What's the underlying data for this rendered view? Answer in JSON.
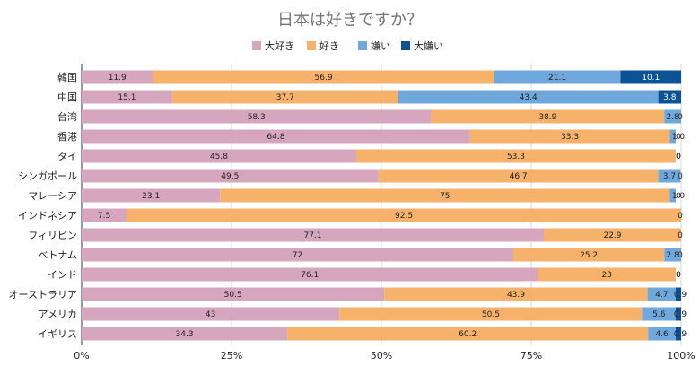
{
  "chart_data": {
    "type": "bar",
    "orientation": "horizontal",
    "stacked": "percent",
    "title": "日本は好きですか？",
    "xlabel": "",
    "ylabel": "",
    "xlim": [
      0,
      100
    ],
    "x_ticks": [
      "0%",
      "25%",
      "50%",
      "75%",
      "100%"
    ],
    "grid": "vertical gridlines",
    "legend_position": "top",
    "categories": [
      "韓国",
      "中国",
      "台湾",
      "香港",
      "タイ",
      "シンガポール",
      "マレーシア",
      "インドネシア",
      "フィリピン",
      "ベトナム",
      "インド",
      "オーストラリア",
      "アメリカ",
      "イギリス"
    ],
    "series": [
      {
        "name": "大好き",
        "color": "#d5a6bd",
        "values": [
          11.9,
          15.1,
          58.3,
          64.8,
          45.8,
          49.5,
          23.1,
          7.5,
          77.1,
          72,
          76.1,
          50.5,
          43,
          34.3
        ]
      },
      {
        "name": "好き",
        "color": "#f6b26b",
        "values": [
          56.9,
          37.7,
          38.9,
          33.3,
          53.3,
          46.7,
          75,
          92.5,
          22.9,
          25.2,
          23,
          43.9,
          50.5,
          60.2
        ]
      },
      {
        "name": "嫌い",
        "color": "#6fa8dc",
        "values": [
          21.1,
          43.4,
          2.8,
          1.0,
          0,
          3.7,
          1.0,
          0,
          0,
          2.8,
          0,
          4.7,
          5.6,
          4.6
        ]
      },
      {
        "name": "大嫌い",
        "color": "#0b5394",
        "values": [
          10.1,
          3.8,
          0,
          0,
          0,
          0,
          0,
          0,
          0,
          0,
          0,
          0.9,
          0.9,
          0.9
        ]
      }
    ],
    "value_labels": [
      [
        "11.9",
        "56.9",
        "21.1",
        "10.1"
      ],
      [
        "15.1",
        "37.7",
        "43.4",
        "3.8"
      ],
      [
        "58.3",
        "38.9",
        "2.8",
        "0"
      ],
      [
        "64.8",
        "33.3",
        "1.0",
        "0"
      ],
      [
        "45.8",
        "53.3",
        "0",
        "0"
      ],
      [
        "49.5",
        "46.7",
        "3.7",
        "0"
      ],
      [
        "23.1",
        "75",
        "1.0",
        "0"
      ],
      [
        "7.5",
        "92.5",
        "",
        "0"
      ],
      [
        "77.1",
        "22.9",
        "",
        "0"
      ],
      [
        "72",
        "25.2",
        "2.8",
        "0"
      ],
      [
        "76.1",
        "23",
        "0",
        "0"
      ],
      [
        "50.5",
        "43.9",
        "4.7",
        "0.9"
      ],
      [
        "43",
        "50.5",
        "5.6",
        "0.9"
      ],
      [
        "34.3",
        "60.2",
        "4.6",
        "0.9"
      ]
    ]
  }
}
